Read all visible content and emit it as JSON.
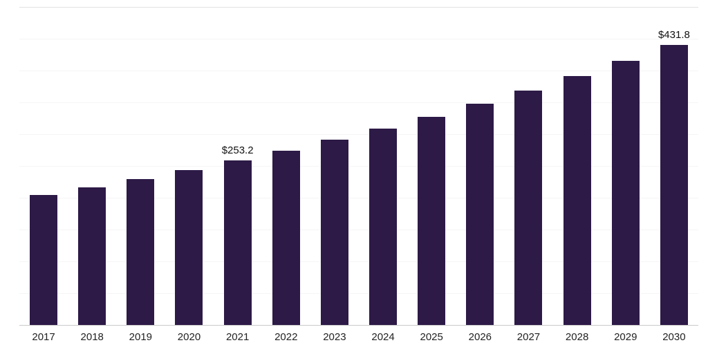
{
  "chart_data": {
    "type": "bar",
    "title": "",
    "xlabel": "",
    "ylabel": "",
    "categories": [
      "2017",
      "2018",
      "2019",
      "2020",
      "2021",
      "2022",
      "2023",
      "2024",
      "2025",
      "2026",
      "2027",
      "2028",
      "2029",
      "2030"
    ],
    "values": [
      199.8,
      212.0,
      224.9,
      238.6,
      253.2,
      268.6,
      285.0,
      302.4,
      320.8,
      340.4,
      361.2,
      383.2,
      406.6,
      431.8
    ],
    "data_labels": [
      {
        "index": 4,
        "text": "$253.2"
      },
      {
        "index": 13,
        "text": "$431.8"
      }
    ],
    "ylim": [
      0,
      490
    ],
    "grid": true,
    "legend": "none",
    "colors": {
      "bar": "#2d1a47",
      "gridline": "#f5f5f5",
      "axis_line": "#c9c9c9",
      "tick_label": "#222222",
      "data_label": "#111111"
    }
  }
}
